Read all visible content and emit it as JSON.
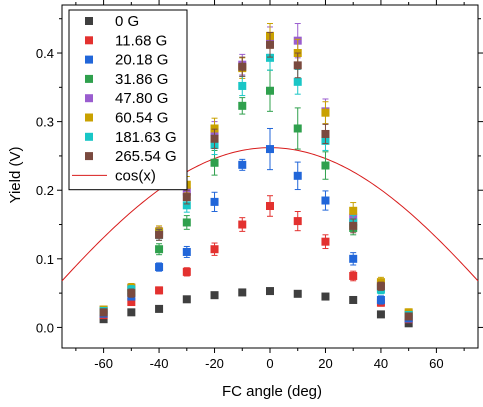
{
  "chart_data": {
    "type": "scatter",
    "xlabel": "FC angle (deg)",
    "ylabel": "Yield (V)",
    "xlim": [
      -75,
      75
    ],
    "ylim": [
      -0.03,
      0.47
    ],
    "xticks": [
      -60,
      -40,
      -20,
      0,
      20,
      40,
      60
    ],
    "yticks": [
      0.0,
      0.1,
      0.2,
      0.3,
      0.4
    ],
    "ytick_labels": [
      "0.0",
      "0.1",
      "0.2",
      "0.3",
      "0.4"
    ],
    "x": [
      -60,
      -50,
      -40,
      -30,
      -20,
      -10,
      0,
      10,
      20,
      30,
      40,
      50
    ],
    "series": [
      {
        "name": "0 G",
        "color": "#3f3f3f",
        "values": [
          0.012,
          0.022,
          0.027,
          0.041,
          0.047,
          0.051,
          0.053,
          0.049,
          0.045,
          0.04,
          0.019,
          0.006
        ],
        "errors": [
          0.003,
          0.003,
          0.003,
          0.003,
          0.003,
          0.003,
          0.003,
          0.003,
          0.003,
          0.003,
          0.003,
          0.003
        ]
      },
      {
        "name": "11.68 G",
        "color": "#e3312f",
        "values": [
          0.018,
          0.037,
          0.054,
          0.081,
          0.114,
          0.15,
          0.177,
          0.155,
          0.125,
          0.075,
          0.036,
          0.012
        ],
        "errors": [
          0.004,
          0.005,
          0.005,
          0.006,
          0.009,
          0.01,
          0.015,
          0.014,
          0.01,
          0.007,
          0.005,
          0.004
        ]
      },
      {
        "name": "20.18 G",
        "color": "#2166d9",
        "values": [
          0.02,
          0.045,
          0.088,
          0.11,
          0.183,
          0.237,
          0.26,
          0.221,
          0.185,
          0.1,
          0.04,
          0.013
        ],
        "errors": [
          0.004,
          0.005,
          0.006,
          0.008,
          0.014,
          0.008,
          0.03,
          0.02,
          0.014,
          0.009,
          0.006,
          0.004
        ]
      },
      {
        "name": "31.86 G",
        "color": "#2fa04d",
        "values": [
          0.024,
          0.052,
          0.114,
          0.153,
          0.24,
          0.323,
          0.345,
          0.29,
          0.236,
          0.145,
          0.058,
          0.018
        ],
        "errors": [
          0.005,
          0.006,
          0.008,
          0.01,
          0.018,
          0.012,
          0.03,
          0.03,
          0.02,
          0.01,
          0.007,
          0.005
        ]
      },
      {
        "name": "47.80 G",
        "color": "#9a5dcf",
        "values": [
          0.026,
          0.058,
          0.138,
          0.198,
          0.285,
          0.383,
          0.418,
          0.418,
          0.315,
          0.16,
          0.062,
          0.02
        ],
        "errors": [
          0.005,
          0.006,
          0.008,
          0.012,
          0.015,
          0.015,
          0.02,
          0.025,
          0.018,
          0.012,
          0.007,
          0.005
        ]
      },
      {
        "name": "60.54 G",
        "color": "#c9a100",
        "values": [
          0.026,
          0.058,
          0.14,
          0.208,
          0.29,
          0.378,
          0.425,
          0.4,
          0.313,
          0.17,
          0.066,
          0.022
        ],
        "errors": [
          0.005,
          0.006,
          0.008,
          0.012,
          0.015,
          0.015,
          0.018,
          0.02,
          0.016,
          0.012,
          0.007,
          0.005
        ]
      },
      {
        "name": "181.63 G",
        "color": "#19c6c6",
        "values": [
          0.024,
          0.055,
          0.135,
          0.178,
          0.266,
          0.352,
          0.393,
          0.358,
          0.272,
          0.153,
          0.055,
          0.018
        ],
        "errors": [
          0.005,
          0.006,
          0.008,
          0.01,
          0.014,
          0.014,
          0.018,
          0.018,
          0.014,
          0.01,
          0.006,
          0.005
        ]
      },
      {
        "name": "265.54 G",
        "color": "#7a4a3f",
        "values": [
          0.022,
          0.05,
          0.135,
          0.19,
          0.275,
          0.38,
          0.412,
          0.382,
          0.282,
          0.148,
          0.06,
          0.016
        ],
        "errors": [
          0.005,
          0.006,
          0.008,
          0.01,
          0.014,
          0.014,
          0.018,
          0.018,
          0.014,
          0.01,
          0.006,
          0.005
        ]
      }
    ],
    "curve": {
      "name": "cos(x)",
      "color": "#d81b1b",
      "amplitude": 0.262
    },
    "legend_placement": "top-left",
    "grid": false
  }
}
